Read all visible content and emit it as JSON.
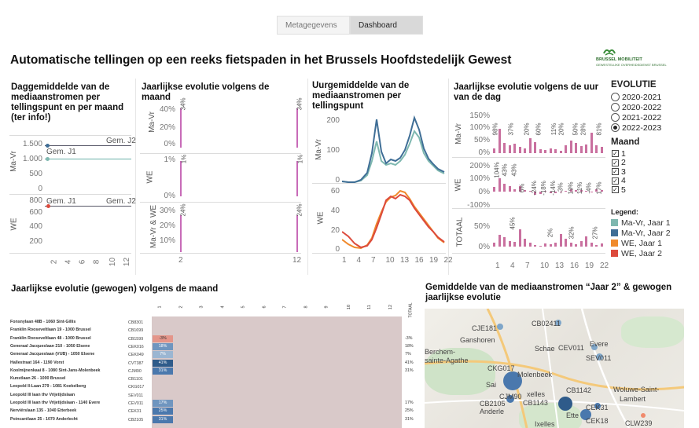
{
  "tabs": [
    {
      "label": "Metagegevens",
      "active": false
    },
    {
      "label": "Dashboard",
      "active": true
    }
  ],
  "page_title": "Automatische tellingen op een reeks fietspaden in het Brussels Hoofdstedelijk Gewest",
  "logo": {
    "line1": "BRUSSEL MOBILITEIT",
    "line2": "GEWESTELIJKE OVERHEIDSDIENST BRUSSEL"
  },
  "panel1": {
    "title": "Daggemiddelde van de mediaanstromen per tellingspunt en per maand (ter info!)",
    "rows": [
      "Ma-Vr",
      "WE"
    ],
    "mavr_ticks": [
      "1.500",
      "1.000",
      "500",
      "0"
    ],
    "we_ticks": [
      "800",
      "600",
      "400",
      "200"
    ],
    "gem_j2": "Gem. J2",
    "gem_j1": "Gem. J1",
    "x_ticks": [
      "2",
      "4",
      "6",
      "8",
      "10",
      "12"
    ]
  },
  "panel2": {
    "title": "Jaarlijkse evolutie volgens de maand",
    "rows": [
      "Ma-Vr",
      "WE",
      "Ma-Vr & WE"
    ],
    "mavr_ticks": [
      "40%",
      "20%",
      "0%"
    ],
    "we_ticks": [
      "1%",
      "0%"
    ],
    "both_ticks": [
      "30%",
      "20%",
      "10%"
    ],
    "labels": {
      "mavr_first": "34%",
      "mavr_last": "34%",
      "we_first": "1%",
      "we_last": "1%",
      "both_first": "24%",
      "both_last": "24%"
    },
    "x_ticks": [
      "2",
      "12"
    ]
  },
  "panel3": {
    "title": "Uurgemiddelde van de mediaanstromen per tellingspunt",
    "rows": [
      "Ma-Vr",
      "WE"
    ],
    "mavr_ticks": [
      "200",
      "100",
      "0"
    ],
    "we_ticks": [
      "60",
      "40",
      "20",
      "0"
    ],
    "x_ticks": [
      "1",
      "4",
      "7",
      "10",
      "13",
      "16",
      "19",
      "22"
    ]
  },
  "panel4": {
    "title": "Jaarlijkse evolutie volgens de uur van de dag",
    "rows": [
      "Ma-Vr",
      "WE",
      "TOTAAL"
    ],
    "mavr_ticks": [
      "150%",
      "100%",
      "50%",
      "0%"
    ],
    "we_ticks": [
      "200%",
      "100%",
      "0%",
      "-100%"
    ],
    "tot_ticks": [
      "50%",
      "0%"
    ],
    "mavr_labels": [
      "98%",
      "37%",
      "20%",
      "60%",
      "11%",
      "20%",
      "50%",
      "28%",
      "81%"
    ],
    "we_labels": [
      "104%",
      "43%",
      "43%",
      "6%",
      "-24%",
      "-18%",
      "-14%",
      "-3%",
      "19%",
      "11%",
      "-4%",
      "17%"
    ],
    "tot_labels": [
      "45%",
      "2%",
      "32%",
      "27%"
    ],
    "x_ticks": [
      "1",
      "4",
      "7",
      "10",
      "13",
      "16",
      "19",
      "22"
    ]
  },
  "filters": {
    "evolutie_title": "EVOLUTIE",
    "evolutie_options": [
      {
        "label": "2020-2021",
        "selected": false
      },
      {
        "label": "2020-2022",
        "selected": false
      },
      {
        "label": "2021-2022",
        "selected": false
      },
      {
        "label": "2022-2023",
        "selected": true
      }
    ],
    "maand_title": "Maand",
    "maand_options": [
      "1",
      "2",
      "3",
      "4",
      "5"
    ],
    "legend_title": "Legend:",
    "legend": [
      {
        "label": "Ma-Vr, Jaar 1",
        "color": "#7fb8b0"
      },
      {
        "label": "Ma-Vr, Jaar 2",
        "color": "#3f6e96"
      },
      {
        "label": "WE, Jaar 1",
        "color": "#f08a2c"
      },
      {
        "label": "WE, Jaar 2",
        "color": "#dc4a3c"
      }
    ]
  },
  "table": {
    "title": "Jaarlijkse evolutie (gewogen) volgens de maand",
    "month_headers": [
      "1",
      "2",
      "3",
      "4",
      "5",
      "6",
      "7",
      "8",
      "9",
      "10",
      "11",
      "12"
    ],
    "total_header": "TOTAAL",
    "rows": [
      {
        "name": "Fonsnylaan 48B - 1060 Sint-Gillis",
        "code": "CB8301",
        "m1": "",
        "total": ""
      },
      {
        "name": "Franklin Rooseveltlaan 19 - 1000 Brussel",
        "code": "CB1699",
        "m1": "",
        "total": ""
      },
      {
        "name": "Franklin Rooseveltlaan 48 - 1000 Brussel",
        "code": "CB1599",
        "m1": "-3%",
        "total": "-3%"
      },
      {
        "name": "Generaal Jacqueslaan 210 - 1050 Elsene",
        "code": "CEK016",
        "m1": "18%",
        "total": "18%"
      },
      {
        "name": "Generaal Jacqueslaan (VUB) - 1050 Elsene",
        "code": "CEK049",
        "m1": "7%",
        "total": "7%"
      },
      {
        "name": "Hallestraat 164 - 1190 Vorst",
        "code": "CVT387",
        "m1": "41%",
        "total": "41%"
      },
      {
        "name": "Koolmijnenkaai 8 - 1080 Sint-Jans-Molenbeek",
        "code": "CJM90",
        "m1": "31%",
        "total": "31%"
      },
      {
        "name": "Kunstlaan 26 - 1000 Brussel",
        "code": "CB1101",
        "m1": "",
        "total": ""
      },
      {
        "name": "Leopold II-Laan 279 - 1081 Koekelberg",
        "code": "CKG017",
        "m1": "",
        "total": ""
      },
      {
        "name": "Leopold III laan thv Vrijetijdslaan",
        "code": "SEV011",
        "m1": "",
        "total": ""
      },
      {
        "name": "Leopold III laan thv Vrijetijdslaan - 1140 Evere",
        "code": "CEV011",
        "m1": "17%",
        "total": "17%"
      },
      {
        "name": "Nerviërslaan 135 - 1040 Etterbeek",
        "code": "CEK31",
        "m1": "25%",
        "total": "25%"
      },
      {
        "name": "Poincarélaan 25 - 1070 Anderlecht",
        "code": "CB2105",
        "m1": "31%",
        "total": "31%"
      }
    ]
  },
  "map": {
    "title": "Gemiddelde van de mediaanstromen “Jaar 2” & gewogen jaarlijkse evolutie",
    "places": [
      "CJE181",
      "Ganshoren",
      "CB02411",
      "Berchem-",
      "sainte-Agathe",
      "Schae",
      "CEV011",
      "Evere",
      "SEV011",
      "CKG017",
      "Molenbeek",
      "Sai",
      "CB1142",
      "xelles",
      "Woluwe-Saint-",
      "Lambert",
      "CB2105",
      "CJM90",
      "CB1143",
      "Anderle",
      "Ette",
      "CEK31",
      "CEK18",
      "Ixelles",
      "CLW239"
    ]
  }
}
